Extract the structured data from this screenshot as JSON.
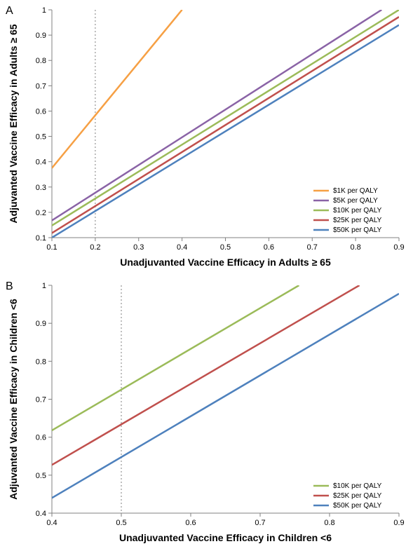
{
  "panelA": {
    "label": "A",
    "xlabel": "Unadjuvanted Vaccine Efficacy in Adults  ≥ 65",
    "ylabel": "Adjuvanted Vaccine Efficacy in Adults  ≥ 65",
    "xlim": [
      0.1,
      0.9
    ],
    "ylim": [
      0.1,
      1.0
    ],
    "xtick_step": 0.1,
    "ytick_step": 0.1,
    "vline_x": 0.2,
    "label_fontsize": 14,
    "tick_fontsize": 11,
    "panel_label_fontsize": 16,
    "legend_fontsize": 10,
    "vline_color": "#7f7f7f",
    "axis_color": "#808080",
    "tick_color": "#808080",
    "legend_pos": "bottom-right",
    "series": [
      {
        "label": "$1K per QALY",
        "color": "#f6a044",
        "x0": 0.1,
        "y0": 0.375,
        "x1": 0.4,
        "y1": 1.0
      },
      {
        "label": "$5K per QALY",
        "color": "#8a63a6",
        "x0": 0.1,
        "y0": 0.168,
        "x1": 0.86,
        "y1": 1.0
      },
      {
        "label": "$10K per QALY",
        "color": "#9bbb59",
        "x0": 0.1,
        "y0": 0.148,
        "x1": 0.9,
        "y1": 1.0
      },
      {
        "label": "$25K per QALY",
        "color": "#c0504d",
        "x0": 0.1,
        "y0": 0.118,
        "x1": 0.9,
        "y1": 0.972
      },
      {
        "label": "$50K per QALY",
        "color": "#4e81bd",
        "x0": 0.1,
        "y0": 0.1,
        "x1": 0.9,
        "y1": 0.94
      }
    ],
    "line_width": 2.5
  },
  "panelB": {
    "label": "B",
    "xlabel": "Unadjuvanted Vaccine Efficacy in Children <6",
    "ylabel": "Adjuvanted Vaccine Efficacy in Children <6",
    "xlim": [
      0.4,
      0.9
    ],
    "ylim": [
      0.4,
      1.0
    ],
    "xtick_step": 0.1,
    "ytick_step": 0.1,
    "vline_x": 0.5,
    "label_fontsize": 14,
    "tick_fontsize": 11,
    "panel_label_fontsize": 16,
    "legend_fontsize": 10,
    "vline_color": "#7f7f7f",
    "axis_color": "#808080",
    "tick_color": "#808080",
    "legend_pos": "bottom-right",
    "series": [
      {
        "label": "$10K per QALY",
        "color": "#9bbb59",
        "x0": 0.4,
        "y0": 0.618,
        "x1": 0.756,
        "y1": 1.0
      },
      {
        "label": "$25K per QALY",
        "color": "#c0504d",
        "x0": 0.4,
        "y0": 0.527,
        "x1": 0.843,
        "y1": 1.0
      },
      {
        "label": "$50K per QALY",
        "color": "#4e81bd",
        "x0": 0.4,
        "y0": 0.44,
        "x1": 0.9,
        "y1": 0.978
      }
    ],
    "line_width": 2.5
  }
}
